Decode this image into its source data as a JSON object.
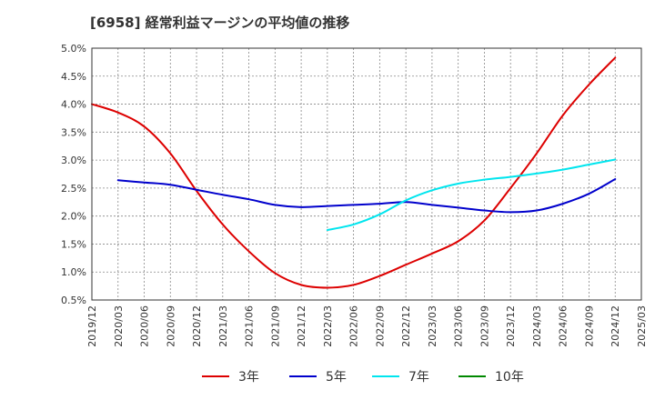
{
  "chart_data": {
    "type": "line",
    "title": "[6958]  経常利益マージンの平均値の推移",
    "y_ticks": [
      "0.5%",
      "1.0%",
      "1.5%",
      "2.0%",
      "2.5%",
      "3.0%",
      "3.5%",
      "4.0%",
      "4.5%",
      "5.0%"
    ],
    "ylim": [
      0.5,
      5.0
    ],
    "x_categories": [
      "2019/12",
      "2020/03",
      "2020/06",
      "2020/09",
      "2020/12",
      "2021/03",
      "2021/06",
      "2021/09",
      "2021/12",
      "2022/03",
      "2022/06",
      "2022/09",
      "2022/12",
      "2023/03",
      "2023/06",
      "2023/09",
      "2023/12",
      "2024/03",
      "2024/06",
      "2024/09",
      "2024/12",
      "2025/03"
    ],
    "grid": true,
    "legend_position": "bottom",
    "series": [
      {
        "name": "3年",
        "color": "#dd0000",
        "values": [
          4.0,
          3.85,
          3.6,
          3.12,
          2.45,
          1.85,
          1.37,
          0.98,
          0.77,
          0.72,
          0.77,
          0.93,
          1.13,
          1.33,
          1.55,
          1.92,
          2.5,
          3.12,
          3.8,
          4.35,
          4.83,
          null
        ]
      },
      {
        "name": "5年",
        "color": "#0000cc",
        "values": [
          null,
          2.64,
          2.6,
          2.56,
          2.47,
          2.38,
          2.3,
          2.2,
          2.16,
          2.18,
          2.2,
          2.22,
          2.25,
          2.2,
          2.15,
          2.1,
          2.07,
          2.1,
          2.22,
          2.4,
          2.66,
          null
        ]
      },
      {
        "name": "7年",
        "color": "#00e5ee",
        "values": [
          null,
          null,
          null,
          null,
          null,
          null,
          null,
          null,
          null,
          1.75,
          1.85,
          2.03,
          2.28,
          2.46,
          2.58,
          2.65,
          2.7,
          2.76,
          2.83,
          2.92,
          3.01,
          null
        ]
      },
      {
        "name": "10年",
        "color": "#008800",
        "values": [
          null,
          null,
          null,
          null,
          null,
          null,
          null,
          null,
          null,
          null,
          null,
          null,
          null,
          null,
          null,
          null,
          null,
          null,
          null,
          null,
          null,
          null
        ]
      }
    ]
  }
}
